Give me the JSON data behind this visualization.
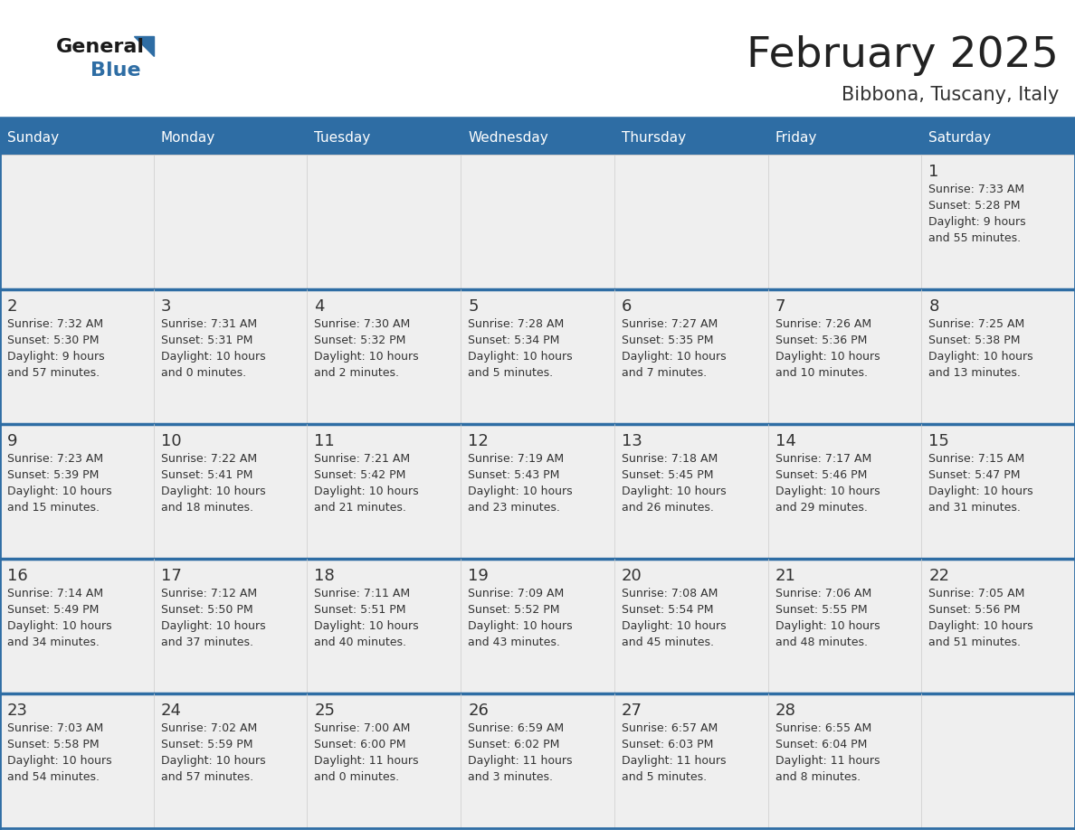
{
  "title": "February 2025",
  "subtitle": "Bibbona, Tuscany, Italy",
  "days_of_week": [
    "Sunday",
    "Monday",
    "Tuesday",
    "Wednesday",
    "Thursday",
    "Friday",
    "Saturday"
  ],
  "header_bg": "#2E6DA4",
  "header_text": "#FFFFFF",
  "cell_bg": "#EFEFEF",
  "cell_bg_empty": "#FFFFFF",
  "row_border_color": "#2E6DA4",
  "cell_border_color": "#CCCCCC",
  "text_color": "#333333",
  "day_number_color": "#333333",
  "logo_general_color": "#1a1a1a",
  "logo_blue_color": "#2E6DA4",
  "calendar_data": {
    "1": {
      "sunrise": "7:33 AM",
      "sunset": "5:28 PM",
      "daylight": "9 hours and 55 minutes."
    },
    "2": {
      "sunrise": "7:32 AM",
      "sunset": "5:30 PM",
      "daylight": "9 hours and 57 minutes."
    },
    "3": {
      "sunrise": "7:31 AM",
      "sunset": "5:31 PM",
      "daylight": "10 hours and 0 minutes."
    },
    "4": {
      "sunrise": "7:30 AM",
      "sunset": "5:32 PM",
      "daylight": "10 hours and 2 minutes."
    },
    "5": {
      "sunrise": "7:28 AM",
      "sunset": "5:34 PM",
      "daylight": "10 hours and 5 minutes."
    },
    "6": {
      "sunrise": "7:27 AM",
      "sunset": "5:35 PM",
      "daylight": "10 hours and 7 minutes."
    },
    "7": {
      "sunrise": "7:26 AM",
      "sunset": "5:36 PM",
      "daylight": "10 hours and 10 minutes."
    },
    "8": {
      "sunrise": "7:25 AM",
      "sunset": "5:38 PM",
      "daylight": "10 hours and 13 minutes."
    },
    "9": {
      "sunrise": "7:23 AM",
      "sunset": "5:39 PM",
      "daylight": "10 hours and 15 minutes."
    },
    "10": {
      "sunrise": "7:22 AM",
      "sunset": "5:41 PM",
      "daylight": "10 hours and 18 minutes."
    },
    "11": {
      "sunrise": "7:21 AM",
      "sunset": "5:42 PM",
      "daylight": "10 hours and 21 minutes."
    },
    "12": {
      "sunrise": "7:19 AM",
      "sunset": "5:43 PM",
      "daylight": "10 hours and 23 minutes."
    },
    "13": {
      "sunrise": "7:18 AM",
      "sunset": "5:45 PM",
      "daylight": "10 hours and 26 minutes."
    },
    "14": {
      "sunrise": "7:17 AM",
      "sunset": "5:46 PM",
      "daylight": "10 hours and 29 minutes."
    },
    "15": {
      "sunrise": "7:15 AM",
      "sunset": "5:47 PM",
      "daylight": "10 hours and 31 minutes."
    },
    "16": {
      "sunrise": "7:14 AM",
      "sunset": "5:49 PM",
      "daylight": "10 hours and 34 minutes."
    },
    "17": {
      "sunrise": "7:12 AM",
      "sunset": "5:50 PM",
      "daylight": "10 hours and 37 minutes."
    },
    "18": {
      "sunrise": "7:11 AM",
      "sunset": "5:51 PM",
      "daylight": "10 hours and 40 minutes."
    },
    "19": {
      "sunrise": "7:09 AM",
      "sunset": "5:52 PM",
      "daylight": "10 hours and 43 minutes."
    },
    "20": {
      "sunrise": "7:08 AM",
      "sunset": "5:54 PM",
      "daylight": "10 hours and 45 minutes."
    },
    "21": {
      "sunrise": "7:06 AM",
      "sunset": "5:55 PM",
      "daylight": "10 hours and 48 minutes."
    },
    "22": {
      "sunrise": "7:05 AM",
      "sunset": "5:56 PM",
      "daylight": "10 hours and 51 minutes."
    },
    "23": {
      "sunrise": "7:03 AM",
      "sunset": "5:58 PM",
      "daylight": "10 hours and 54 minutes."
    },
    "24": {
      "sunrise": "7:02 AM",
      "sunset": "5:59 PM",
      "daylight": "10 hours and 57 minutes."
    },
    "25": {
      "sunrise": "7:00 AM",
      "sunset": "6:00 PM",
      "daylight": "11 hours and 0 minutes."
    },
    "26": {
      "sunrise": "6:59 AM",
      "sunset": "6:02 PM",
      "daylight": "11 hours and 3 minutes."
    },
    "27": {
      "sunrise": "6:57 AM",
      "sunset": "6:03 PM",
      "daylight": "11 hours and 5 minutes."
    },
    "28": {
      "sunrise": "6:55 AM",
      "sunset": "6:04 PM",
      "daylight": "11 hours and 8 minutes."
    }
  },
  "weeks": [
    [
      null,
      null,
      null,
      null,
      null,
      null,
      1
    ],
    [
      2,
      3,
      4,
      5,
      6,
      7,
      8
    ],
    [
      9,
      10,
      11,
      12,
      13,
      14,
      15
    ],
    [
      16,
      17,
      18,
      19,
      20,
      21,
      22
    ],
    [
      23,
      24,
      25,
      26,
      27,
      28,
      null
    ]
  ]
}
